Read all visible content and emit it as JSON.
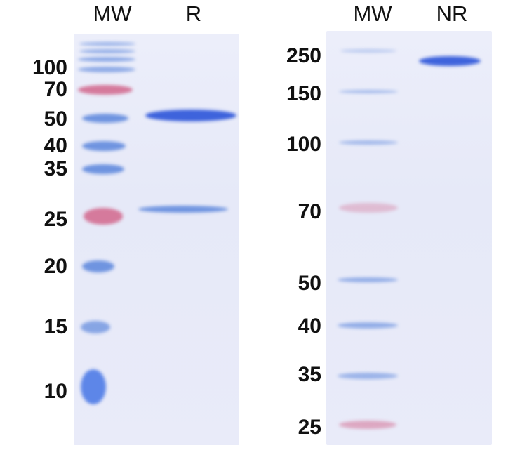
{
  "left_panel": {
    "lanes": [
      "MW",
      "R"
    ],
    "markers_kda": [
      "100",
      "70",
      "50",
      "40",
      "35",
      "25",
      "20",
      "15",
      "10"
    ]
  },
  "right_panel": {
    "lanes": [
      "MW",
      "NR"
    ],
    "markers_kda": [
      "250",
      "150",
      "100",
      "70",
      "50",
      "40",
      "35",
      "25"
    ]
  },
  "colors": {
    "gel": "#e8ebf8",
    "marker_blue": "#6f94e0",
    "marker_pink": "#d57a9c",
    "sample_band": "#3e63dc"
  }
}
